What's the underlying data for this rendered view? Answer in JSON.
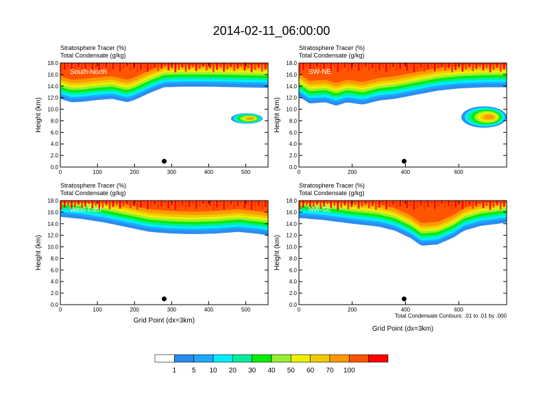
{
  "title": "2014-02-11_06:00:00",
  "colorbar": {
    "colors": [
      "#ffffff",
      "#2b8cf0",
      "#1fa8ff",
      "#00eeff",
      "#00ee99",
      "#00ee00",
      "#99ee33",
      "#eeee00",
      "#eecc00",
      "#ff9900",
      "#ff5500",
      "#ff0000"
    ],
    "labels": [
      "1",
      "5",
      "10",
      "20",
      "30",
      "40",
      "50",
      "60",
      "70",
      "100"
    ]
  },
  "contour_note": "Total Condensate Contours: .01 to .01 by .000",
  "chart_data": [
    {
      "type": "heatmap",
      "panel": "South-North",
      "var_label_1": "Stratosphere Tracer   (%)",
      "var_label_2": "Total Condensate   (g/kg)",
      "ylabel": "Height (km)",
      "xlabel": "",
      "xlim": [
        0,
        560
      ],
      "ylim": [
        0,
        18
      ],
      "xticks": [
        "0",
        "100",
        "200",
        "300",
        "400",
        "500"
      ],
      "yticks": [
        "0.0",
        "2.0",
        "4.0",
        "6.0",
        "8.0",
        "10.0",
        "12.0",
        "14.0",
        "16.0",
        "18.0"
      ],
      "marker_x": 280,
      "marker_y": 1.0,
      "tracer_base_km": [
        [
          0,
          11.8
        ],
        [
          30,
          11.2
        ],
        [
          60,
          11.3
        ],
        [
          100,
          11.6
        ],
        [
          140,
          11.8
        ],
        [
          180,
          11.2
        ],
        [
          200,
          11.6
        ],
        [
          240,
          12.8
        ],
        [
          280,
          13.8
        ],
        [
          330,
          13.9
        ],
        [
          400,
          13.9
        ],
        [
          480,
          13.8
        ],
        [
          560,
          13.7
        ]
      ],
      "tracer_patches": [
        {
          "x": [
            460,
            545
          ],
          "y": [
            7.5,
            9.3
          ]
        }
      ]
    },
    {
      "type": "heatmap",
      "panel": "SW-NE",
      "var_label_1": "Stratosphere Tracer   (%)",
      "var_label_2": "Total Condensate   (g/kg)",
      "ylabel": "Height (km)",
      "xlabel": "",
      "xlim": [
        0,
        780
      ],
      "ylim": [
        0,
        18
      ],
      "xticks": [
        "0",
        "200",
        "400",
        "600"
      ],
      "yticks": [
        "0.0",
        "2.0",
        "4.0",
        "6.0",
        "8.0",
        "10.0",
        "12.0",
        "14.0",
        "16.0",
        "18.0"
      ],
      "marker_x": 395,
      "marker_y": 1.0,
      "tracer_base_km": [
        [
          0,
          12.2
        ],
        [
          40,
          11.0
        ],
        [
          100,
          11.2
        ],
        [
          140,
          10.6
        ],
        [
          180,
          11.2
        ],
        [
          240,
          10.8
        ],
        [
          300,
          11.5
        ],
        [
          360,
          11.8
        ],
        [
          440,
          12.5
        ],
        [
          520,
          13.2
        ],
        [
          600,
          13.6
        ],
        [
          700,
          13.8
        ],
        [
          780,
          13.8
        ]
      ],
      "tracer_patches": [
        {
          "x": [
            610,
            780
          ],
          "y": [
            6.8,
            10.5
          ]
        }
      ]
    },
    {
      "type": "heatmap",
      "panel": "West-East",
      "var_label_1": "Stratosphere Tracer   (%)",
      "var_label_2": "Total Condensate   (g/kg)",
      "ylabel": "Height (km)",
      "xlabel": "Grid Point (dx=3km)",
      "xlim": [
        0,
        560
      ],
      "ylim": [
        0,
        18
      ],
      "xticks": [
        "0",
        "100",
        "200",
        "300",
        "400",
        "500"
      ],
      "yticks": [
        "0.0",
        "2.0",
        "4.0",
        "6.0",
        "8.0",
        "10.0",
        "12.0",
        "14.0",
        "16.0",
        "18.0"
      ],
      "marker_x": 280,
      "marker_y": 1.0,
      "tracer_base_km": [
        [
          0,
          15.2
        ],
        [
          60,
          14.8
        ],
        [
          120,
          14.2
        ],
        [
          180,
          13.4
        ],
        [
          240,
          12.6
        ],
        [
          300,
          12.3
        ],
        [
          360,
          12.2
        ],
        [
          420,
          12.3
        ],
        [
          480,
          12.6
        ],
        [
          540,
          12.2
        ],
        [
          560,
          12.0
        ]
      ],
      "tracer_patches": []
    },
    {
      "type": "heatmap",
      "panel": "NW-SE",
      "var_label_1": "Stratosphere Tracer   (%)",
      "var_label_2": "Total Condensate   (g/kg)",
      "ylabel": "Height (km)",
      "xlabel": "Grid Point (dx=3km)",
      "xlim": [
        0,
        780
      ],
      "ylim": [
        0,
        18
      ],
      "xticks": [
        "0",
        "200",
        "400",
        "600"
      ],
      "yticks": [
        "0.0",
        "2.0",
        "4.0",
        "6.0",
        "8.0",
        "10.0",
        "12.0",
        "14.0",
        "16.0",
        "18.0"
      ],
      "marker_x": 395,
      "marker_y": 1.0,
      "tracer_base_km": [
        [
          0,
          15.0
        ],
        [
          100,
          14.6
        ],
        [
          200,
          14.0
        ],
        [
          300,
          13.5
        ],
        [
          360,
          12.8
        ],
        [
          420,
          11.5
        ],
        [
          460,
          10.2
        ],
        [
          520,
          10.4
        ],
        [
          580,
          11.6
        ],
        [
          620,
          12.8
        ],
        [
          680,
          13.6
        ],
        [
          780,
          14.2
        ]
      ],
      "tracer_patches": []
    }
  ]
}
